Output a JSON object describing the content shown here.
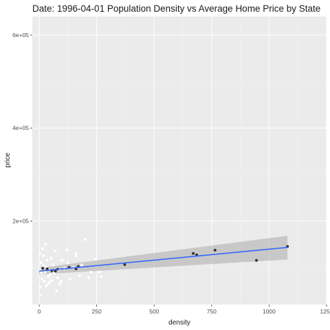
{
  "chart_data": {
    "type": "scatter",
    "title": "Date: 1996-04-01   Population Density vs Average Home Price by State",
    "xlabel": "density",
    "ylabel": "price",
    "xlim": [
      -30,
      1250
    ],
    "ylim": [
      20000,
      640000
    ],
    "x_ticks": [
      0,
      250,
      500,
      750,
      1000,
      1250
    ],
    "x_tick_labels": [
      "0",
      "250",
      "500",
      "750",
      "1000",
      "1250"
    ],
    "y_ticks": [
      200000,
      400000,
      600000
    ],
    "y_tick_labels": [
      "2e+05",
      "4e+05",
      "6e+05"
    ],
    "grid": true,
    "panel_background": "#ebebeb",
    "grid_color": "#ffffff",
    "series": [
      {
        "color": "#ffffff",
        "points": [
          [
            2,
            130000
          ],
          [
            5,
            95000
          ],
          [
            8,
            110000
          ],
          [
            10,
            88000
          ],
          [
            12,
            75000
          ],
          [
            15,
            140000
          ],
          [
            18,
            125000
          ],
          [
            20,
            105000
          ],
          [
            22,
            70000
          ],
          [
            25,
            90000
          ],
          [
            28,
            150000
          ],
          [
            30,
            60000
          ],
          [
            32,
            100000
          ],
          [
            35,
            115000
          ],
          [
            38,
            65000
          ],
          [
            40,
            80000
          ],
          [
            42,
            95000
          ],
          [
            45,
            68000
          ],
          [
            48,
            85000
          ],
          [
            52,
            120000
          ],
          [
            55,
            72000
          ],
          [
            60,
            105000
          ],
          [
            65,
            88000
          ],
          [
            70,
            135000
          ],
          [
            75,
            50000
          ],
          [
            80,
            78000
          ],
          [
            85,
            95000
          ],
          [
            90,
            65000
          ],
          [
            95,
            70000
          ],
          [
            100,
            115000
          ],
          [
            110,
            98000
          ],
          [
            125,
            110000
          ],
          [
            135,
            75000
          ],
          [
            150,
            100000
          ],
          [
            160,
            125000
          ],
          [
            175,
            82000
          ],
          [
            185,
            105000
          ],
          [
            200,
            160000
          ],
          [
            215,
            78000
          ],
          [
            225,
            90000
          ],
          [
            245,
            118000
          ],
          [
            262,
            90000
          ],
          [
            270,
            80000
          ],
          [
            160,
            130000
          ],
          [
            120,
            138000
          ],
          [
            5,
            40000
          ],
          [
            3,
            58000
          ]
        ]
      },
      {
        "color": "#333333",
        "points": [
          [
            15,
            98000
          ],
          [
            35,
            97000
          ],
          [
            55,
            93000
          ],
          [
            70,
            92000
          ],
          [
            80,
            96000
          ],
          [
            130,
            100000
          ],
          [
            160,
            97000
          ],
          [
            170,
            102000
          ],
          [
            372,
            106000
          ],
          [
            670,
            130000
          ],
          [
            685,
            127000
          ],
          [
            765,
            137000
          ],
          [
            945,
            115000
          ],
          [
            1080,
            145000
          ]
        ]
      }
    ],
    "fit_line": {
      "color": "#3366ff",
      "band_color": "#b0b0b0",
      "x": [
        0,
        1080
      ],
      "y": [
        92000,
        143000
      ],
      "band_lower": [
        85000,
        117000
      ],
      "band_upper": [
        99000,
        168000
      ]
    }
  }
}
